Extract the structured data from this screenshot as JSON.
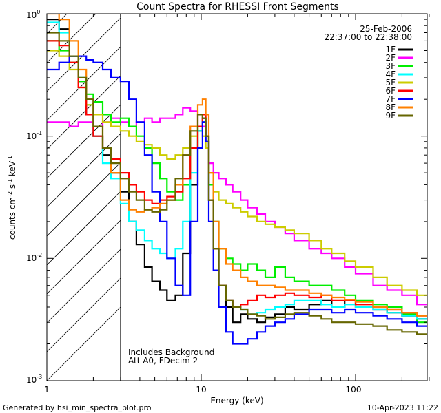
{
  "chart_data": {
    "type": "line",
    "title": "Count Spectra for RHESSI Front Segments",
    "xlabel": "Energy (keV)",
    "ylabel": "counts cm",
    "xscale": "log",
    "yscale": "log",
    "xlim": [
      1,
      320
    ],
    "ylim": [
      0.001,
      1.0
    ],
    "x_tick_labels": [
      "1",
      "10",
      "100"
    ],
    "y_tick_labels": [
      "10",
      "10",
      "10",
      "10"
    ],
    "y_tick_exponents": [
      "-3",
      "-2",
      "-1",
      "0"
    ],
    "ylabel_exp_1": "-2",
    "ylabel_mid": " s",
    "ylabel_exp_2": "-1",
    "ylabel_end": " keV",
    "ylabel_exp_3": "-1",
    "legend_date": "25-Feb-2006",
    "legend_time": "22:37:00 to 22:38:00",
    "legend_position": "top-right",
    "shaded_region": {
      "x_from": 1.0,
      "x_to": 3.0,
      "pattern": "diagonal-hatch"
    },
    "annotations": [
      "Includes Background",
      "Att A0, FDecim 2"
    ],
    "footer_left": "Generated by hsi_min_spectra_plot.pro",
    "footer_right": "10-Apr-2023 11:22",
    "series": [
      {
        "name": "1F",
        "color": "#000000",
        "x": [
          1.0,
          1.2,
          1.4,
          1.6,
          1.8,
          2.0,
          2.3,
          2.6,
          3.0,
          3.4,
          3.8,
          4.3,
          4.8,
          5.4,
          6.0,
          6.8,
          7.6,
          8.5,
          9.5,
          10.2,
          10.7,
          11.2,
          12.0,
          13.0,
          14.5,
          16.0,
          18.0,
          20.0,
          23.0,
          26.0,
          30.0,
          35.0,
          40.0,
          50.0,
          60.0,
          70.0,
          85.0,
          100.0,
          130.0,
          160.0,
          200.0,
          250.0,
          310.0
        ],
        "values": [
          0.9,
          0.75,
          0.45,
          0.28,
          0.15,
          0.1,
          0.07,
          0.05,
          0.035,
          0.02,
          0.013,
          0.0085,
          0.0065,
          0.0055,
          0.0045,
          0.005,
          0.011,
          0.04,
          0.11,
          0.14,
          0.09,
          0.03,
          0.012,
          0.006,
          0.004,
          0.003,
          0.0035,
          0.0032,
          0.003,
          0.0033,
          0.0035,
          0.004,
          0.0038,
          0.0042,
          0.0045,
          0.004,
          0.0045,
          0.004,
          0.0038,
          0.0036,
          0.0034,
          0.0032,
          0.003
        ]
      },
      {
        "name": "2F",
        "color": "#ff00ff",
        "x": [
          1.0,
          1.2,
          1.4,
          1.6,
          1.8,
          2.0,
          2.3,
          2.6,
          3.0,
          3.4,
          3.8,
          4.3,
          4.8,
          5.4,
          6.0,
          6.8,
          7.6,
          8.5,
          9.5,
          10.2,
          10.7,
          11.2,
          12.0,
          13.0,
          14.5,
          16.0,
          18.0,
          20.0,
          23.0,
          26.0,
          30.0,
          35.0,
          40.0,
          50.0,
          60.0,
          70.0,
          85.0,
          100.0,
          130.0,
          160.0,
          200.0,
          250.0,
          310.0
        ],
        "values": [
          0.13,
          0.13,
          0.12,
          0.13,
          0.13,
          0.12,
          0.13,
          0.14,
          0.13,
          0.12,
          0.13,
          0.14,
          0.13,
          0.14,
          0.14,
          0.15,
          0.17,
          0.16,
          0.12,
          0.12,
          0.09,
          0.06,
          0.05,
          0.045,
          0.04,
          0.035,
          0.03,
          0.026,
          0.023,
          0.02,
          0.018,
          0.016,
          0.014,
          0.012,
          0.011,
          0.01,
          0.0085,
          0.0075,
          0.006,
          0.0055,
          0.005,
          0.0042,
          0.004
        ]
      },
      {
        "name": "3F",
        "color": "#00ee00",
        "x": [
          1.0,
          1.2,
          1.4,
          1.6,
          1.8,
          2.0,
          2.3,
          2.6,
          3.0,
          3.4,
          3.8,
          4.3,
          4.8,
          5.4,
          6.0,
          6.8,
          7.6,
          8.5,
          9.5,
          10.2,
          10.7,
          11.2,
          12.0,
          13.0,
          14.5,
          16.0,
          18.0,
          20.0,
          23.0,
          26.0,
          30.0,
          35.0,
          40.0,
          50.0,
          60.0,
          70.0,
          85.0,
          100.0,
          130.0,
          160.0,
          200.0,
          250.0,
          310.0
        ],
        "values": [
          0.6,
          0.5,
          0.4,
          0.28,
          0.22,
          0.19,
          0.15,
          0.13,
          0.14,
          0.12,
          0.1,
          0.08,
          0.06,
          0.045,
          0.035,
          0.03,
          0.04,
          0.08,
          0.12,
          0.13,
          0.1,
          0.04,
          0.02,
          0.012,
          0.01,
          0.009,
          0.008,
          0.009,
          0.008,
          0.007,
          0.0085,
          0.007,
          0.0065,
          0.006,
          0.006,
          0.0055,
          0.005,
          0.0045,
          0.0042,
          0.004,
          0.0035,
          0.003,
          0.003
        ]
      },
      {
        "name": "4F",
        "color": "#00ffff",
        "x": [
          1.0,
          1.2,
          1.4,
          1.6,
          1.8,
          2.0,
          2.3,
          2.6,
          3.0,
          3.4,
          3.8,
          4.3,
          4.8,
          5.4,
          6.0,
          6.8,
          7.6,
          8.5,
          9.5,
          10.2,
          10.7,
          11.2,
          12.0,
          13.0,
          14.5,
          16.0,
          18.0,
          20.0,
          23.0,
          26.0,
          30.0,
          35.0,
          40.0,
          50.0,
          60.0,
          70.0,
          85.0,
          100.0,
          130.0,
          160.0,
          200.0,
          250.0,
          310.0
        ],
        "values": [
          0.85,
          0.7,
          0.45,
          0.3,
          0.18,
          0.1,
          0.06,
          0.045,
          0.028,
          0.02,
          0.017,
          0.014,
          0.012,
          0.011,
          0.01,
          0.012,
          0.02,
          0.05,
          0.11,
          0.13,
          0.09,
          0.03,
          0.012,
          0.006,
          0.0045,
          0.004,
          0.0038,
          0.0035,
          0.0036,
          0.0038,
          0.004,
          0.0042,
          0.0045,
          0.0045,
          0.0042,
          0.004,
          0.0042,
          0.004,
          0.0038,
          0.0036,
          0.0034,
          0.0032,
          0.003
        ]
      },
      {
        "name": "5F",
        "color": "#cccc00",
        "x": [
          1.0,
          1.2,
          1.4,
          1.6,
          1.8,
          2.0,
          2.3,
          2.6,
          3.0,
          3.4,
          3.8,
          4.3,
          4.8,
          5.4,
          6.0,
          6.8,
          7.6,
          8.5,
          9.5,
          10.2,
          10.7,
          11.2,
          12.0,
          13.0,
          14.5,
          16.0,
          18.0,
          20.0,
          23.0,
          26.0,
          30.0,
          35.0,
          40.0,
          50.0,
          60.0,
          70.0,
          85.0,
          100.0,
          130.0,
          160.0,
          200.0,
          250.0,
          310.0
        ],
        "values": [
          0.5,
          0.45,
          0.35,
          0.25,
          0.18,
          0.15,
          0.13,
          0.12,
          0.11,
          0.1,
          0.09,
          0.085,
          0.08,
          0.07,
          0.065,
          0.07,
          0.08,
          0.1,
          0.12,
          0.1,
          0.08,
          0.05,
          0.035,
          0.03,
          0.028,
          0.026,
          0.024,
          0.022,
          0.02,
          0.019,
          0.018,
          0.017,
          0.016,
          0.014,
          0.012,
          0.011,
          0.0095,
          0.0085,
          0.007,
          0.006,
          0.0055,
          0.005,
          0.004
        ]
      },
      {
        "name": "6F",
        "color": "#ff0000",
        "x": [
          1.0,
          1.2,
          1.4,
          1.6,
          1.8,
          2.0,
          2.3,
          2.6,
          3.0,
          3.4,
          3.8,
          4.3,
          4.8,
          5.4,
          6.0,
          6.8,
          7.6,
          8.5,
          9.5,
          10.2,
          10.7,
          11.2,
          12.0,
          13.0,
          14.5,
          16.0,
          18.0,
          20.0,
          23.0,
          26.0,
          30.0,
          35.0,
          40.0,
          50.0,
          60.0,
          70.0,
          85.0,
          100.0,
          130.0,
          160.0,
          200.0,
          250.0,
          310.0
        ],
        "values": [
          0.6,
          0.55,
          0.4,
          0.25,
          0.15,
          0.1,
          0.08,
          0.065,
          0.05,
          0.04,
          0.035,
          0.03,
          0.028,
          0.03,
          0.032,
          0.035,
          0.045,
          0.08,
          0.12,
          0.15,
          0.1,
          0.03,
          0.012,
          0.006,
          0.0045,
          0.004,
          0.0042,
          0.0045,
          0.005,
          0.0048,
          0.005,
          0.0052,
          0.005,
          0.0048,
          0.005,
          0.0045,
          0.0045,
          0.0042,
          0.004,
          0.0038,
          0.0036,
          0.0034,
          0.003
        ]
      },
      {
        "name": "7F",
        "color": "#0000ff",
        "x": [
          1.0,
          1.2,
          1.4,
          1.6,
          1.8,
          2.0,
          2.3,
          2.6,
          3.0,
          3.4,
          3.8,
          4.3,
          4.8,
          5.4,
          6.0,
          6.8,
          7.6,
          8.5,
          9.5,
          10.2,
          10.7,
          11.2,
          12.0,
          13.0,
          14.5,
          16.0,
          18.0,
          20.0,
          23.0,
          26.0,
          30.0,
          35.0,
          40.0,
          50.0,
          60.0,
          70.0,
          85.0,
          100.0,
          130.0,
          160.0,
          200.0,
          250.0,
          310.0
        ],
        "values": [
          0.35,
          0.4,
          0.45,
          0.45,
          0.42,
          0.4,
          0.35,
          0.3,
          0.28,
          0.2,
          0.13,
          0.07,
          0.035,
          0.02,
          0.01,
          0.006,
          0.005,
          0.02,
          0.08,
          0.13,
          0.09,
          0.02,
          0.008,
          0.004,
          0.0025,
          0.002,
          0.002,
          0.0022,
          0.0025,
          0.0028,
          0.003,
          0.0032,
          0.0035,
          0.0038,
          0.0038,
          0.0036,
          0.0038,
          0.0036,
          0.0034,
          0.0032,
          0.003,
          0.0028,
          0.0025
        ]
      },
      {
        "name": "8F",
        "color": "#ff8000",
        "x": [
          1.0,
          1.2,
          1.4,
          1.6,
          1.8,
          2.0,
          2.3,
          2.6,
          3.0,
          3.4,
          3.8,
          4.3,
          4.8,
          5.4,
          6.0,
          6.8,
          7.6,
          8.5,
          9.5,
          10.2,
          10.7,
          11.2,
          12.0,
          13.0,
          14.5,
          16.0,
          18.0,
          20.0,
          23.0,
          26.0,
          30.0,
          35.0,
          40.0,
          50.0,
          60.0,
          70.0,
          85.0,
          100.0,
          130.0,
          160.0,
          200.0,
          250.0,
          310.0
        ],
        "values": [
          1.0,
          0.9,
          0.6,
          0.35,
          0.2,
          0.12,
          0.08,
          0.05,
          0.03,
          0.025,
          0.024,
          0.025,
          0.026,
          0.028,
          0.03,
          0.04,
          0.07,
          0.12,
          0.18,
          0.2,
          0.15,
          0.05,
          0.02,
          0.012,
          0.009,
          0.008,
          0.007,
          0.0065,
          0.006,
          0.006,
          0.0058,
          0.0055,
          0.0055,
          0.0052,
          0.005,
          0.0048,
          0.0046,
          0.0044,
          0.004,
          0.0038,
          0.0036,
          0.0034,
          0.003
        ]
      },
      {
        "name": "9F",
        "color": "#666600",
        "x": [
          1.0,
          1.2,
          1.4,
          1.6,
          1.8,
          2.0,
          2.3,
          2.6,
          3.0,
          3.4,
          3.8,
          4.3,
          4.8,
          5.4,
          6.0,
          6.8,
          7.6,
          8.5,
          9.5,
          10.2,
          10.7,
          11.2,
          12.0,
          13.0,
          14.5,
          16.0,
          18.0,
          20.0,
          23.0,
          26.0,
          30.0,
          35.0,
          40.0,
          50.0,
          60.0,
          70.0,
          85.0,
          100.0,
          130.0,
          160.0,
          200.0,
          250.0,
          310.0
        ],
        "values": [
          0.7,
          0.6,
          0.45,
          0.3,
          0.2,
          0.12,
          0.08,
          0.06,
          0.045,
          0.035,
          0.03,
          0.025,
          0.024,
          0.025,
          0.03,
          0.045,
          0.07,
          0.11,
          0.15,
          0.14,
          0.1,
          0.03,
          0.012,
          0.006,
          0.0045,
          0.004,
          0.0038,
          0.0035,
          0.0034,
          0.0032,
          0.0033,
          0.0035,
          0.0036,
          0.0034,
          0.0032,
          0.003,
          0.003,
          0.0029,
          0.0028,
          0.0026,
          0.0025,
          0.0024,
          0.0022
        ]
      }
    ]
  }
}
